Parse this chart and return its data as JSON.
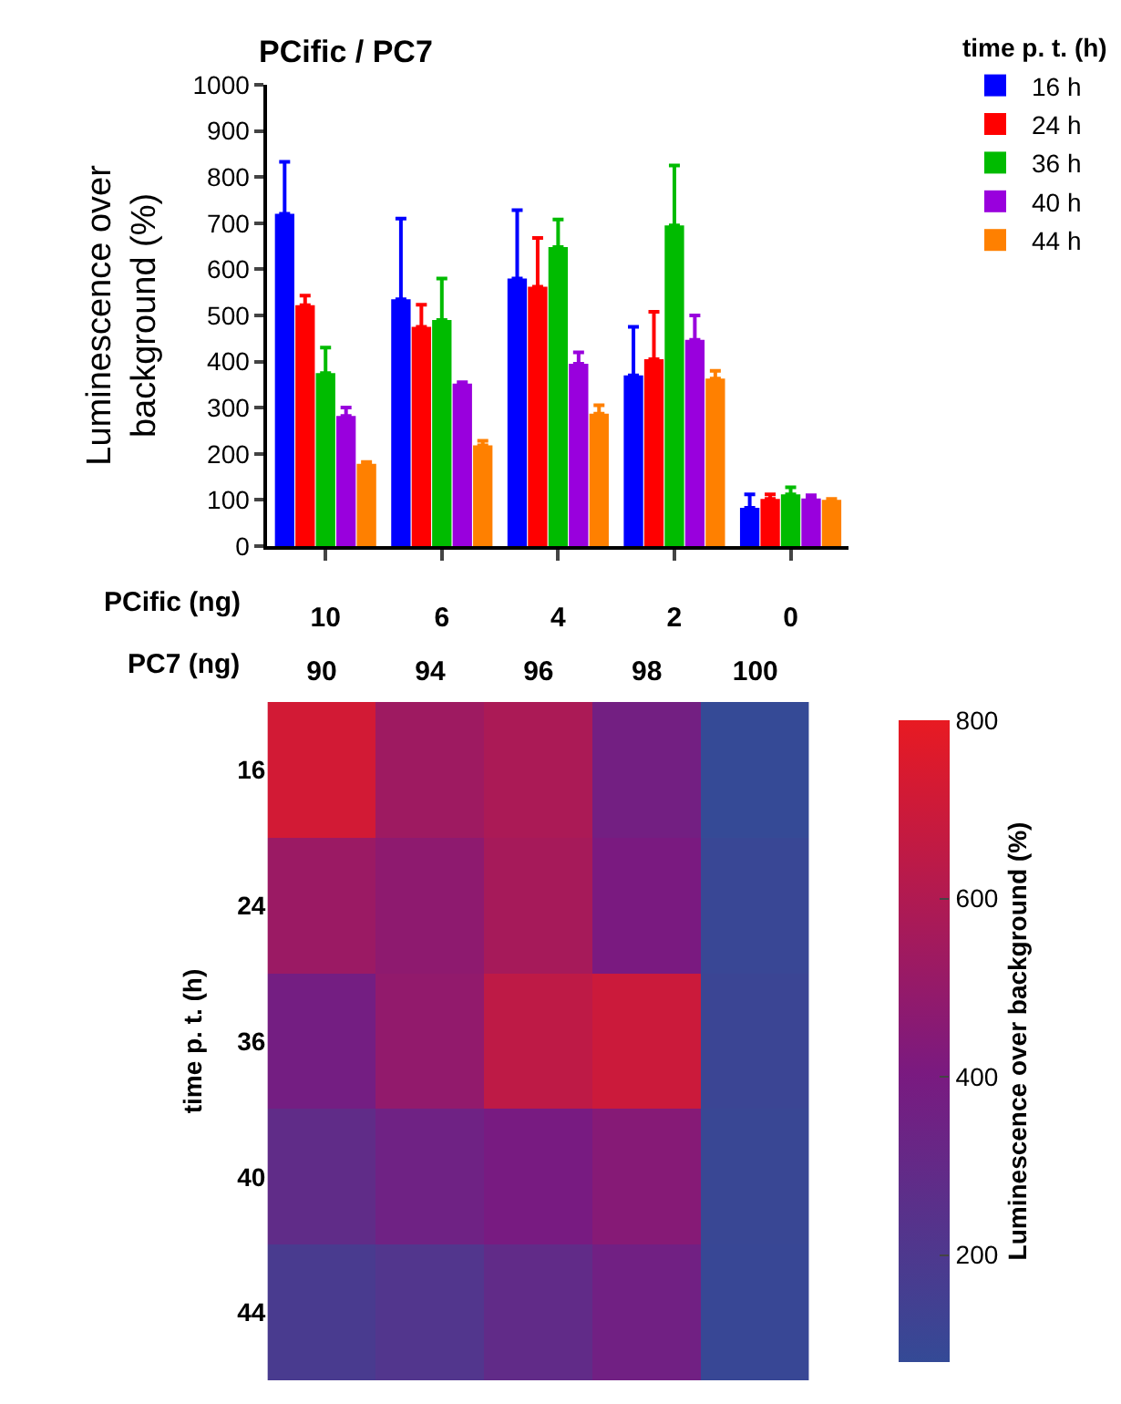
{
  "chart_data": [
    {
      "type": "bar",
      "title": "PCific / PC7",
      "ylabel": "Luminescence over background (%)",
      "xlabel": "PCific (ng)",
      "legend_title": "time p. t. (h)",
      "legend": "top right",
      "categories": [
        "10",
        "6",
        "4",
        "2",
        "0"
      ],
      "ylim": [
        0,
        1000
      ],
      "yticks": [
        0,
        100,
        200,
        300,
        400,
        500,
        600,
        700,
        800,
        900,
        1000
      ],
      "series": [
        {
          "name": "16 h",
          "color": "#0000ff",
          "values": [
            720,
            535,
            580,
            370,
            83
          ],
          "errors": [
            [
              720,
              833
            ],
            [
              535,
              710
            ],
            [
              580,
              728
            ],
            [
              370,
              475
            ],
            [
              83,
              112
            ]
          ]
        },
        {
          "name": "24 h",
          "color": "#ff0000",
          "values": [
            522,
            475,
            562,
            405,
            102
          ],
          "errors": [
            [
              522,
              543
            ],
            [
              475,
              523
            ],
            [
              562,
              668
            ],
            [
              405,
              508
            ],
            [
              102,
              112
            ]
          ]
        },
        {
          "name": "36 h",
          "color": "#00bb00",
          "values": [
            375,
            490,
            648,
            695,
            112
          ],
          "errors": [
            [
              375,
              430
            ],
            [
              490,
              580
            ],
            [
              648,
              708
            ],
            [
              695,
              825
            ],
            [
              112,
              127
            ]
          ]
        },
        {
          "name": "40 h",
          "color": "#9900dd",
          "values": [
            282,
            352,
            395,
            447,
            103
          ],
          "errors": [
            [
              282,
              300
            ],
            [
              352,
              355
            ],
            [
              395,
              420
            ],
            [
              447,
              500
            ],
            [
              103,
              110
            ]
          ]
        },
        {
          "name": "44 h",
          "color": "#ff8000",
          "values": [
            178,
            218,
            287,
            363,
            100
          ],
          "errors": [
            [
              178,
              182
            ],
            [
              218,
              228
            ],
            [
              287,
              305
            ],
            [
              363,
              380
            ],
            [
              100,
              102
            ]
          ]
        }
      ]
    },
    {
      "type": "heatmap",
      "xlabel": "PC7 (ng)",
      "ylabel": "time p. t. (h)",
      "clabel": "Luminescence over background (%)",
      "categories": [
        "90",
        "94",
        "96",
        "98",
        "100"
      ],
      "y_categories": [
        "16",
        "24",
        "36",
        "40",
        "44"
      ],
      "cells": [
        [
          720,
          535,
          580,
          370,
          83
        ],
        [
          522,
          475,
          562,
          405,
          102
        ],
        [
          375,
          490,
          648,
          695,
          112
        ],
        [
          282,
          352,
          395,
          447,
          103
        ],
        [
          178,
          218,
          287,
          363,
          100
        ]
      ],
      "clim": [
        80,
        800
      ],
      "cticks": [
        200,
        400,
        600,
        800
      ]
    }
  ]
}
